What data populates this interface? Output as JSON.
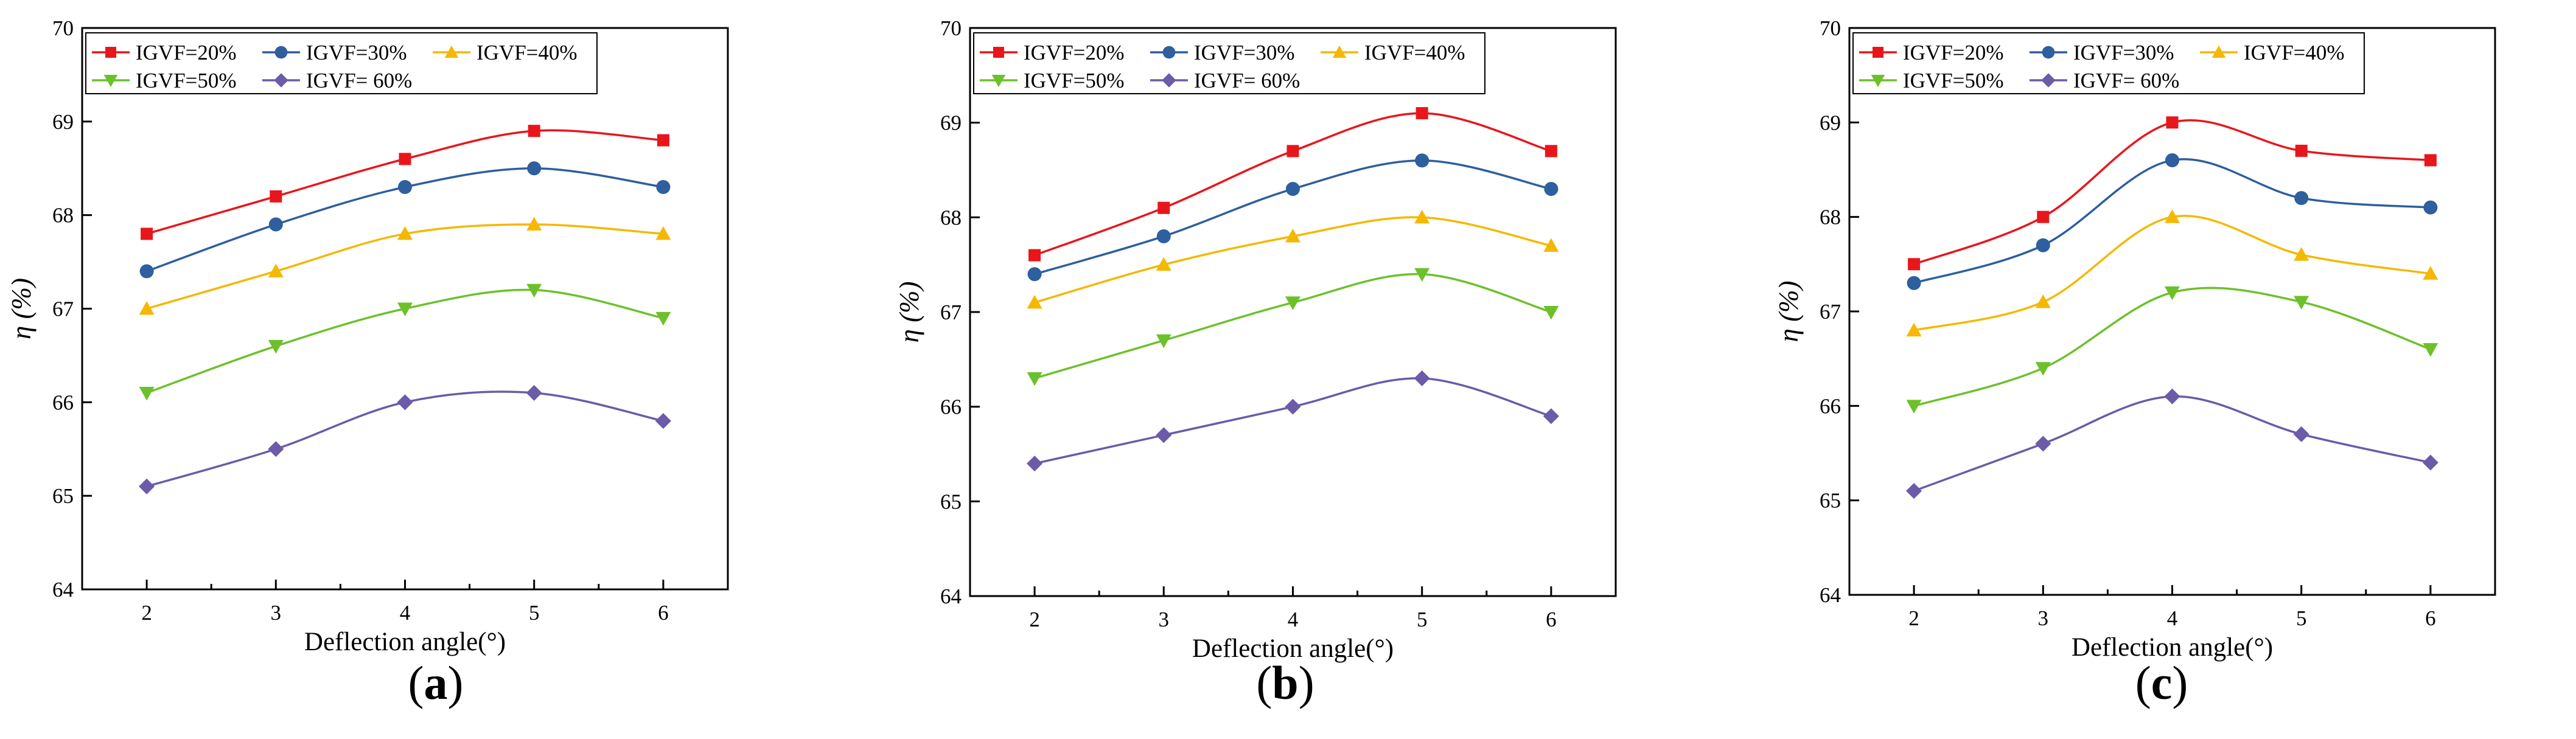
{
  "chart_data": [
    {
      "type": "line",
      "caption": [
        "(",
        "a",
        ")"
      ],
      "xlabel": "Deflection angle(°)",
      "ylabel": "η (%)",
      "x": [
        2,
        3,
        4,
        5,
        6
      ],
      "xlim": [
        1.5,
        6.5
      ],
      "ylim": [
        64,
        70
      ],
      "xticks": [
        "2",
        "3",
        "4",
        "5",
        "6"
      ],
      "yticks": [
        "64",
        "65",
        "66",
        "67",
        "68",
        "69",
        "70"
      ],
      "legend_position": "top-left",
      "series": [
        {
          "name": "IGVF=20%",
          "color": "#e8161b",
          "marker": "square",
          "values": [
            67.8,
            68.2,
            68.6,
            68.9,
            68.8
          ]
        },
        {
          "name": "IGVF=30%",
          "color": "#2e5f9e",
          "marker": "circle",
          "values": [
            67.4,
            67.9,
            68.3,
            68.5,
            68.3
          ]
        },
        {
          "name": "IGVF=40%",
          "color": "#f5b800",
          "marker": "triangle-up",
          "values": [
            67.0,
            67.4,
            67.8,
            67.9,
            67.8
          ]
        },
        {
          "name": "IGVF=50%",
          "color": "#6cc12a",
          "marker": "triangle-down",
          "values": [
            66.1,
            66.6,
            67.0,
            67.2,
            66.9
          ]
        },
        {
          "name": "IGVF= 60%",
          "color": "#6b5ba8",
          "marker": "diamond",
          "values": [
            65.1,
            65.5,
            66.0,
            66.1,
            65.8
          ]
        }
      ]
    },
    {
      "type": "line",
      "caption": [
        "(",
        "b",
        ")"
      ],
      "xlabel": "Deflection angle(°)",
      "ylabel": "η (%)",
      "x": [
        2,
        3,
        4,
        5,
        6
      ],
      "xlim": [
        1.5,
        6.5
      ],
      "ylim": [
        64,
        70
      ],
      "xticks": [
        "2",
        "3",
        "4",
        "5",
        "6"
      ],
      "yticks": [
        "64",
        "65",
        "66",
        "67",
        "68",
        "69",
        "70"
      ],
      "legend_position": "top-left",
      "series": [
        {
          "name": "IGVF=20%",
          "color": "#e8161b",
          "marker": "square",
          "values": [
            67.6,
            68.1,
            68.7,
            69.1,
            68.7
          ]
        },
        {
          "name": "IGVF=30%",
          "color": "#2e5f9e",
          "marker": "circle",
          "values": [
            67.4,
            67.8,
            68.3,
            68.6,
            68.3
          ]
        },
        {
          "name": "IGVF=40%",
          "color": "#f5b800",
          "marker": "triangle-up",
          "values": [
            67.1,
            67.5,
            67.8,
            68.0,
            67.7
          ]
        },
        {
          "name": "IGVF=50%",
          "color": "#6cc12a",
          "marker": "triangle-down",
          "values": [
            66.3,
            66.7,
            67.1,
            67.4,
            67.0
          ]
        },
        {
          "name": "IGVF= 60%",
          "color": "#6b5ba8",
          "marker": "diamond",
          "values": [
            65.4,
            65.7,
            66.0,
            66.3,
            65.9
          ]
        }
      ]
    },
    {
      "type": "line",
      "caption": [
        "(",
        "c",
        ")"
      ],
      "xlabel": "Deflection angle(°)",
      "ylabel": "η (%)",
      "x": [
        2,
        3,
        4,
        5,
        6
      ],
      "xlim": [
        1.5,
        6.5
      ],
      "ylim": [
        64,
        70
      ],
      "xticks": [
        "2",
        "3",
        "4",
        "5",
        "6"
      ],
      "yticks": [
        "64",
        "65",
        "66",
        "67",
        "68",
        "69",
        "70"
      ],
      "legend_position": "top-left",
      "series": [
        {
          "name": "IGVF=20%",
          "color": "#e8161b",
          "marker": "square",
          "values": [
            67.5,
            68.0,
            69.0,
            68.7,
            68.6
          ]
        },
        {
          "name": "IGVF=30%",
          "color": "#2e5f9e",
          "marker": "circle",
          "values": [
            67.3,
            67.7,
            68.6,
            68.2,
            68.1
          ]
        },
        {
          "name": "IGVF=40%",
          "color": "#f5b800",
          "marker": "triangle-up",
          "values": [
            66.8,
            67.1,
            68.0,
            67.6,
            67.4
          ]
        },
        {
          "name": "IGVF=50%",
          "color": "#6cc12a",
          "marker": "triangle-down",
          "values": [
            66.0,
            66.4,
            67.2,
            67.1,
            66.6
          ]
        },
        {
          "name": "IGVF= 60%",
          "color": "#6b5ba8",
          "marker": "diamond",
          "values": [
            65.1,
            65.6,
            66.1,
            65.7,
            65.4
          ]
        }
      ]
    }
  ]
}
